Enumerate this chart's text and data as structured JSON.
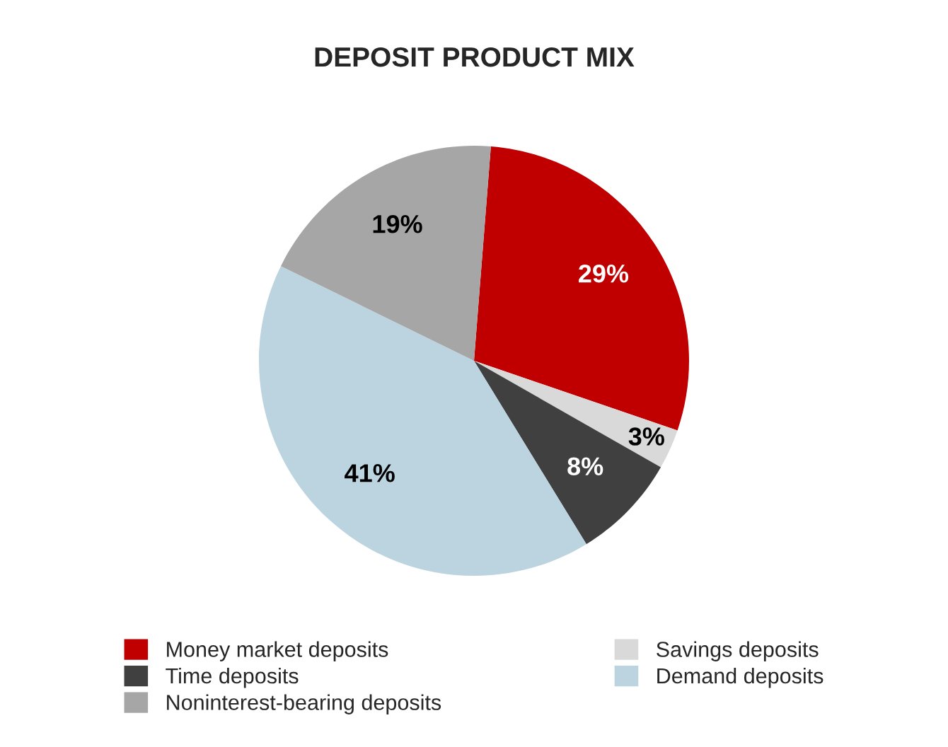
{
  "chart_data": {
    "type": "pie",
    "title": "DEPOSIT PRODUCT MIX",
    "categories": [
      "Money market deposits",
      "Savings deposits",
      "Time deposits",
      "Demand deposits",
      "Noninterest-bearing deposits"
    ],
    "values": [
      29,
      3,
      8,
      41,
      19
    ],
    "colors": [
      "#c00000",
      "#d9d9d9",
      "#404040",
      "#bcd4e0",
      "#a6a6a6"
    ],
    "value_labels": [
      "29%",
      "3%",
      "8%",
      "41%",
      "19%"
    ],
    "legend": "bottom"
  }
}
